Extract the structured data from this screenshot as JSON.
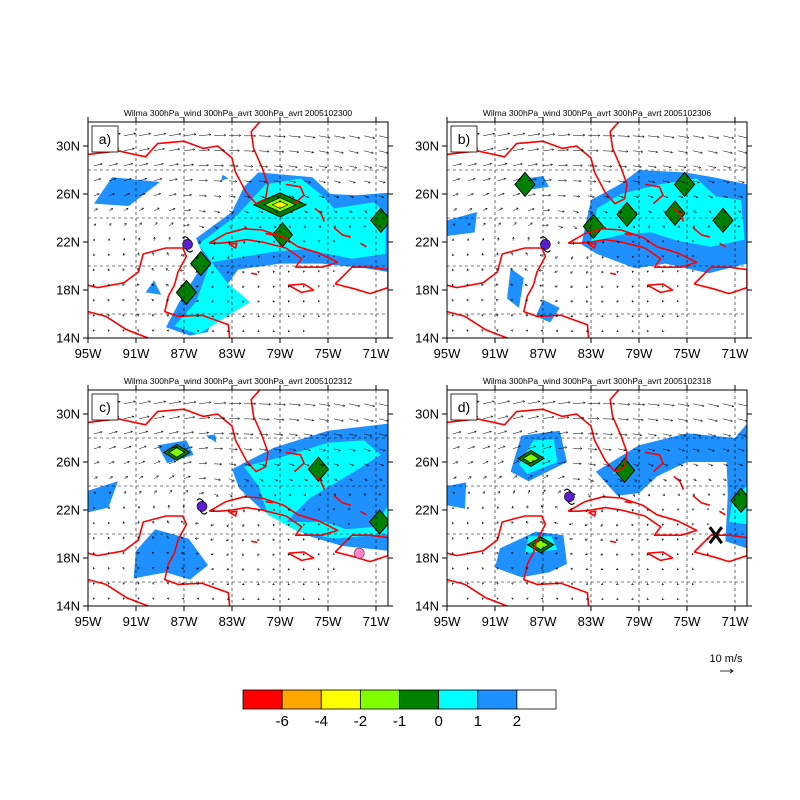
{
  "axes": {
    "lon_ticks": [
      "95W",
      "91W",
      "87W",
      "83W",
      "79W",
      "75W",
      "71W"
    ],
    "lat_ticks": [
      "30N",
      "26N",
      "22N",
      "18N",
      "14N"
    ],
    "lon_values": [
      -95,
      -91,
      -87,
      -83,
      -79,
      -75,
      -71
    ],
    "lat_values": [
      30,
      26,
      22,
      18,
      14
    ],
    "lon_range": [
      -95,
      -70
    ],
    "lat_range": [
      14,
      32
    ],
    "grid": "dashed 4-degree"
  },
  "panels": [
    {
      "id": "a",
      "label": "a)",
      "title": "Wilma 300hPa_wind 300hPa_avrt 300hPa_avrt 2005102300",
      "storm": {
        "lon": -86.7,
        "lat": 21.8,
        "symbol": "hurricane"
      },
      "negative_cores": [
        {
          "lon": -79.0,
          "lat": 25.1,
          "level": -4
        },
        {
          "lon": -85.6,
          "lat": 20.2,
          "level": -1
        },
        {
          "lon": -78.8,
          "lat": 22.6,
          "level": -1
        },
        {
          "lon": -86.8,
          "lat": 17.8,
          "level": -1
        },
        {
          "lon": -70.6,
          "lat": 23.8,
          "level": -1
        }
      ]
    },
    {
      "id": "b",
      "label": "b)",
      "title": "Wilma 300hPa_wind 300hPa_avrt 300hPa_avrt 2005102306",
      "storm": {
        "lon": -86.8,
        "lat": 21.8,
        "symbol": "hurricane"
      },
      "negative_cores": [
        {
          "lon": -82.8,
          "lat": 23.3,
          "level": -1
        },
        {
          "lon": -80.0,
          "lat": 24.3,
          "level": -1
        },
        {
          "lon": -76.0,
          "lat": 24.4,
          "level": -1
        },
        {
          "lon": -72.0,
          "lat": 23.8,
          "level": -1
        },
        {
          "lon": -75.2,
          "lat": 26.8,
          "level": -1
        },
        {
          "lon": -88.5,
          "lat": 26.8,
          "level": -1
        }
      ]
    },
    {
      "id": "c",
      "label": "c)",
      "title": "Wilma 300hPa_wind 300hPa_avrt 300hPa_avrt 2005102312",
      "storm": {
        "lon": -85.5,
        "lat": 22.3,
        "symbol": "hurricane"
      },
      "marker": {
        "lon": -72.4,
        "lat": 18.4,
        "symbol": "pink-dot"
      },
      "negative_cores": [
        {
          "lon": -87.6,
          "lat": 26.8,
          "level": -2
        },
        {
          "lon": -75.8,
          "lat": 25.4,
          "level": -1
        },
        {
          "lon": -70.7,
          "lat": 21.0,
          "level": -1
        }
      ]
    },
    {
      "id": "d",
      "label": "d)",
      "title": "Wilma 300hPa_wind 300hPa_avrt 300hPa_avrt 2005102318",
      "storm": {
        "lon": -84.8,
        "lat": 23.1,
        "symbol": "hurricane"
      },
      "marker": {
        "lon": -72.6,
        "lat": 19.9,
        "symbol": "x-mark"
      },
      "negative_cores": [
        {
          "lon": -88.0,
          "lat": 26.3,
          "level": -2
        },
        {
          "lon": -87.2,
          "lat": 19.1,
          "level": -2
        },
        {
          "lon": -80.2,
          "lat": 25.3,
          "level": -1
        },
        {
          "lon": -70.5,
          "lat": 22.8,
          "level": -1
        }
      ]
    }
  ],
  "reference_vector": {
    "label": "10 m/s"
  },
  "colorbar": {
    "colors": [
      "#ff0000",
      "#ffa500",
      "#ffff00",
      "#7fff00",
      "#008000",
      "#00ffff",
      "#1e90ff",
      "#ffffff"
    ],
    "labels": [
      "-6",
      "-4",
      "-2",
      "-1",
      "0",
      "1",
      "2"
    ]
  },
  "colors": {
    "coast": "#ff0000",
    "frame": "#000000",
    "grid": "#000000",
    "storm": "#5a1fd0",
    "marker_pink": "#ff88cc"
  }
}
